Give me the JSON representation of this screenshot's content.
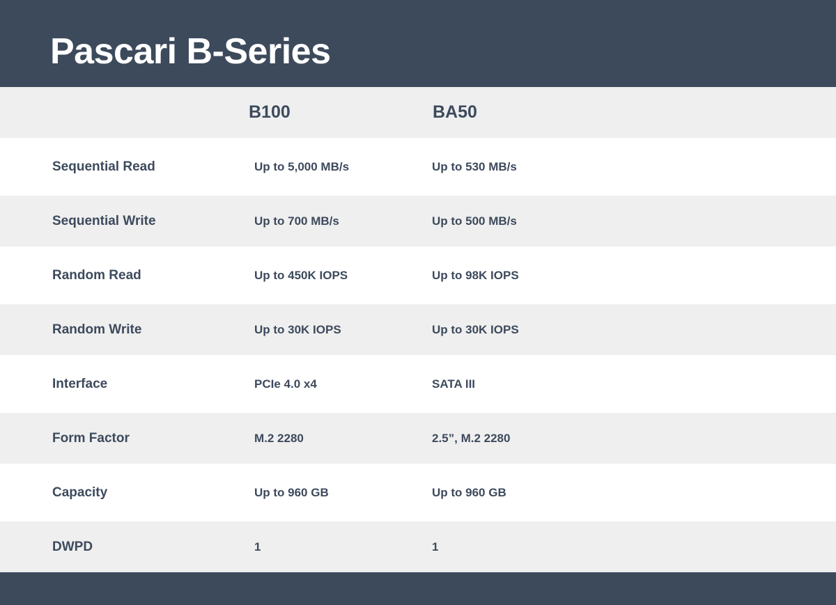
{
  "title": "Pascari B-Series",
  "columns": [
    "B100",
    "BA50"
  ],
  "rows": [
    {
      "label": "Sequential Read",
      "values": [
        "Up to 5,000 MB/s",
        "Up to 530 MB/s"
      ]
    },
    {
      "label": "Sequential Write",
      "values": [
        "Up to 700 MB/s",
        "Up to 500 MB/s"
      ]
    },
    {
      "label": "Random Read",
      "values": [
        "Up to 450K IOPS",
        "Up to 98K IOPS"
      ]
    },
    {
      "label": "Random Write",
      "values": [
        "Up to 30K IOPS",
        "Up to 30K IOPS"
      ]
    },
    {
      "label": "Interface",
      "values": [
        "PCIe 4.0 x4",
        "SATA III"
      ]
    },
    {
      "label": "Form Factor",
      "values": [
        "M.2 2280",
        "2.5”, M.2 2280"
      ]
    },
    {
      "label": "Capacity",
      "values": [
        "Up to 960 GB",
        "Up to 960 GB"
      ]
    },
    {
      "label": "DWPD",
      "values": [
        "1",
        "1"
      ]
    }
  ],
  "colors": {
    "header": "#3c4a5c",
    "stripe": "#efefef",
    "text": "#3d4a5c"
  }
}
